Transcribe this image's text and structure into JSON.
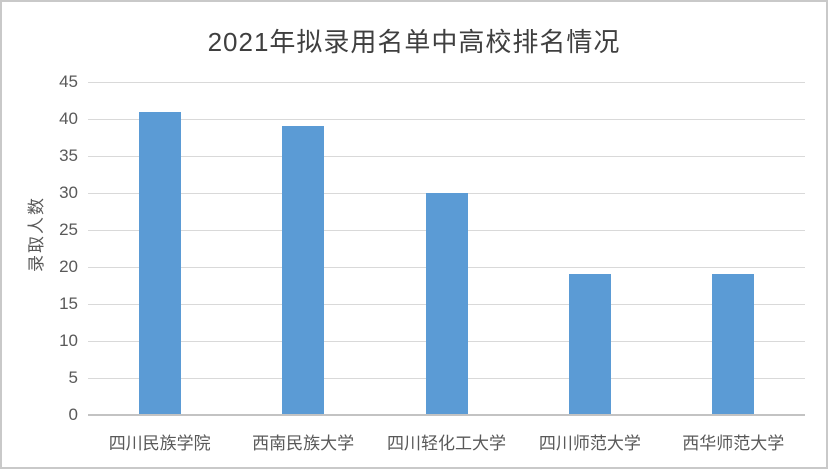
{
  "page": {
    "background": "#ffffff",
    "frame_border_color": "#c9c9c9"
  },
  "chart_data": {
    "type": "bar",
    "title": "2021年拟录用名单中高校排名情况",
    "categories": [
      "四川民族学院",
      "西南民族大学",
      "四川轻化工大学",
      "四川师范大学",
      "西华师范大学"
    ],
    "values": [
      41,
      39,
      30,
      19,
      19
    ],
    "xlabel": "",
    "ylabel": "录取人数",
    "ylim": [
      0,
      45
    ],
    "yticks": [
      0,
      5,
      10,
      15,
      20,
      25,
      30,
      35,
      40,
      45
    ],
    "grid": "horizontal",
    "legend": "none",
    "bar_color": "#5B9BD5",
    "gridline_color": "#D9D9D9",
    "axis_line_color": "#C3C3C3",
    "tick_label_color": "#595959",
    "title_color": "#3F3F3F"
  }
}
